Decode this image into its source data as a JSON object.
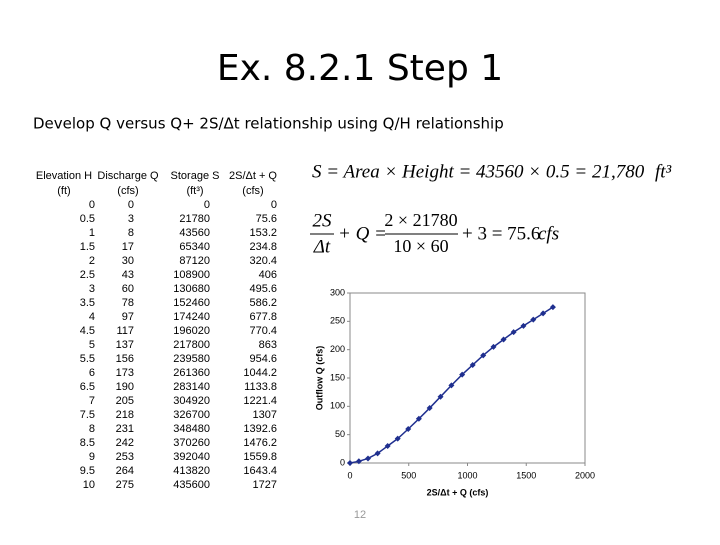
{
  "title": "Ex. 8.2.1 Step 1",
  "subtitle": "Develop Q versus Q+ 2S/Δt relationship using Q/H relationship",
  "table": {
    "header": [
      [
        "Elevation H",
        "Discharge Q",
        "Storage S",
        "2S/Δt + Q"
      ],
      [
        "(ft)",
        "(cfs)",
        "(ft³)",
        "(cfs)"
      ]
    ],
    "rows": [
      [
        0,
        0,
        0,
        0
      ],
      [
        0.5,
        3,
        21780,
        75.6
      ],
      [
        1,
        8,
        43560,
        153.2
      ],
      [
        1.5,
        17,
        65340,
        234.8
      ],
      [
        2,
        30,
        87120,
        320.4
      ],
      [
        2.5,
        43,
        108900,
        406
      ],
      [
        3,
        60,
        130680,
        495.6
      ],
      [
        3.5,
        78,
        152460,
        586.2
      ],
      [
        4,
        97,
        174240,
        677.8
      ],
      [
        4.5,
        117,
        196020,
        770.4
      ],
      [
        5,
        137,
        217800,
        863
      ],
      [
        5.5,
        156,
        239580,
        954.6
      ],
      [
        6,
        173,
        261360,
        1044.2
      ],
      [
        6.5,
        190,
        283140,
        1133.8
      ],
      [
        7,
        205,
        304920,
        1221.4
      ],
      [
        7.5,
        218,
        326700,
        1307
      ],
      [
        8,
        231,
        348480,
        1392.6
      ],
      [
        8.5,
        242,
        370260,
        1476.2
      ],
      [
        9,
        253,
        392040,
        1559.8
      ],
      [
        9.5,
        264,
        413820,
        1643.4
      ],
      [
        10,
        275,
        435600,
        1727
      ]
    ]
  },
  "equations": {
    "storage": {
      "text": "S = Area × Height = 43560 × 0.5 = 21,780",
      "unit": "ft³"
    },
    "outflow": {
      "num_lhs": "2S",
      "den_lhs": "Δt",
      "mid": "+ Q =",
      "num_rhs": "2 × 21780",
      "den_rhs": "10 × 60",
      "result": "+ 3 = 75.6",
      "unit": "cfs"
    }
  },
  "chart_data": {
    "type": "line",
    "x_label": "2S/Δt + Q (cfs)",
    "y_label": "Outflow Q (cfs)",
    "x": [
      0,
      75.6,
      153.2,
      234.8,
      320.4,
      406,
      495.6,
      586.2,
      677.8,
      770.4,
      863,
      954.6,
      1044.2,
      1133.8,
      1221.4,
      1307,
      1392.6,
      1476.2,
      1559.8,
      1643.4,
      1727
    ],
    "values": [
      0,
      3,
      8,
      17,
      30,
      43,
      60,
      78,
      97,
      117,
      137,
      156,
      173,
      190,
      205,
      218,
      231,
      242,
      253,
      264,
      275
    ],
    "color": "#1f2f8f",
    "xlim": [
      0,
      2000
    ],
    "ylim": [
      0,
      300
    ],
    "xticks": [
      0,
      500,
      1000,
      1500,
      2000
    ],
    "yticks": [
      0,
      50,
      100,
      150,
      200,
      250,
      300
    ]
  },
  "page_number": "12"
}
